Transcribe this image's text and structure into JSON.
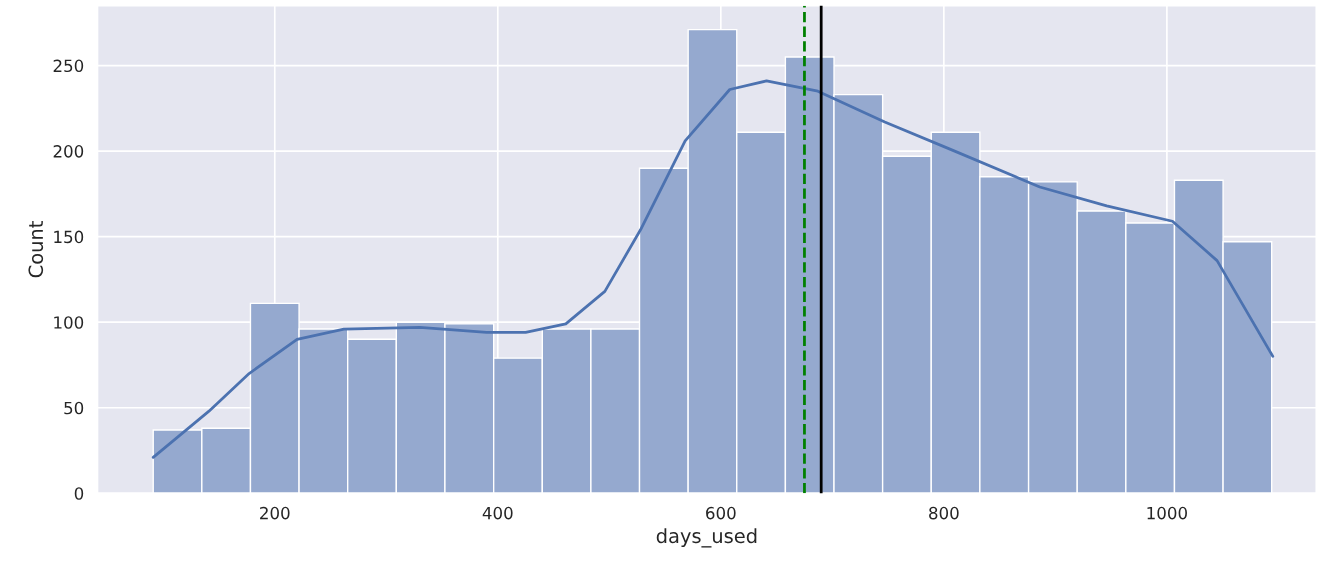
{
  "chart_data": {
    "type": "histogram",
    "xlabel": "days_used",
    "ylabel": "Count",
    "bins": [
      91,
      134.6,
      178.2,
      221.8,
      265.4,
      309.0,
      352.6,
      396.3,
      439.9,
      483.5,
      527.1,
      570.7,
      614.3,
      657.9,
      701.5,
      745.1,
      788.7,
      832.3,
      876.0,
      919.6,
      963.2,
      1006.8,
      1050.4,
      1094
    ],
    "series": [
      {
        "color": "#95a9cf",
        "values": [
          37,
          38,
          111,
          96,
          90,
          100,
          99,
          79,
          96,
          96,
          190,
          271,
          211,
          255,
          233,
          197,
          211,
          185,
          182,
          165,
          158,
          183,
          147
        ]
      },
      {
        "type": "line",
        "color": "#4c72b0",
        "x": [
          91,
          141,
          177,
          220,
          262,
          330,
          390,
          425,
          461,
          496,
          528,
          568,
          608,
          641,
          687,
          747,
          806,
          886,
          946,
          1005,
          1045,
          1095
        ],
        "values": [
          21,
          48,
          70,
          90,
          96,
          97,
          94,
          94,
          99,
          118,
          154,
          206,
          236,
          241,
          235,
          217,
          201,
          179,
          168,
          159,
          136,
          80
        ]
      }
    ],
    "ref_lines": [
      {
        "axis": "x",
        "value": 675,
        "color": "#008000",
        "line_style": "dashed"
      },
      {
        "axis": "x",
        "value": 690,
        "color": "#000000",
        "line_style": "solid"
      }
    ],
    "xlim": [
      41,
      1134
    ],
    "xticks": [
      200,
      400,
      600,
      800,
      1000
    ],
    "ylim": [
      0,
      285
    ],
    "yticks": [
      0,
      50,
      100,
      150,
      200,
      250
    ],
    "grid": true
  }
}
